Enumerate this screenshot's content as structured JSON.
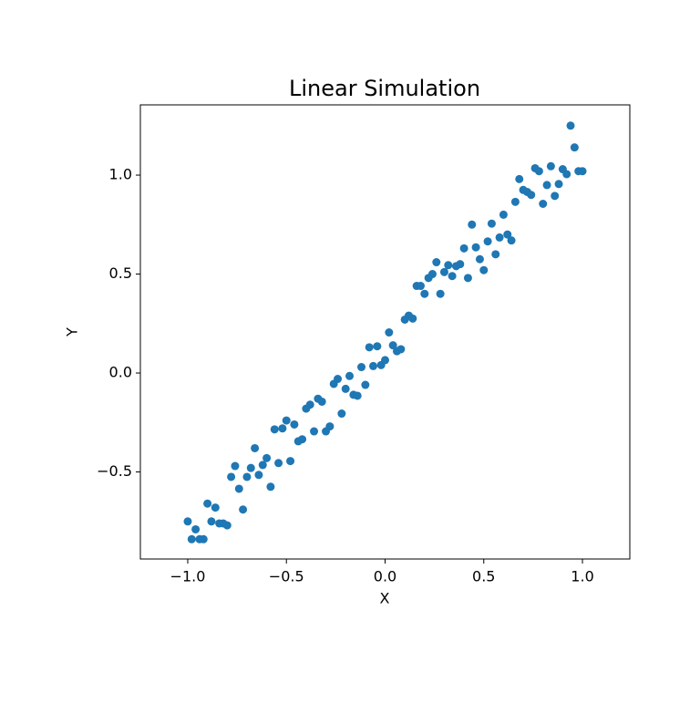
{
  "chart_data": {
    "type": "scatter",
    "title": "Linear Simulation",
    "x_label": "X",
    "y_label": "Y",
    "color": "#1f77b4",
    "x": [
      -1.0,
      -0.98,
      -0.96,
      -0.94,
      -0.92,
      -0.9,
      -0.88,
      -0.86,
      -0.84,
      -0.82,
      -0.8,
      -0.78,
      -0.76,
      -0.74,
      -0.72,
      -0.7,
      -0.68,
      -0.66,
      -0.64,
      -0.62,
      -0.6,
      -0.58,
      -0.56,
      -0.54,
      -0.52,
      -0.5,
      -0.48,
      -0.46,
      -0.44,
      -0.42,
      -0.4,
      -0.38,
      -0.36,
      -0.34,
      -0.32,
      -0.3,
      -0.28,
      -0.26,
      -0.24,
      -0.22,
      -0.2,
      -0.18,
      -0.16,
      -0.14,
      -0.12,
      -0.1,
      -0.08,
      -0.06,
      -0.04,
      -0.02,
      0,
      0.02,
      0.04,
      0.06,
      0.08,
      0.1,
      0.12,
      0.14,
      0.16,
      0.18,
      0.2,
      0.22,
      0.24,
      0.26,
      0.28,
      0.3,
      0.32,
      0.34,
      0.36,
      0.38,
      0.4,
      0.42,
      0.44,
      0.46,
      0.48,
      0.5,
      0.52,
      0.54,
      0.56,
      0.58,
      0.6,
      0.62,
      0.64,
      0.66,
      0.68,
      0.7,
      0.72,
      0.74,
      0.76,
      0.78,
      0.8,
      0.82,
      0.84,
      0.86,
      0.88,
      0.9,
      0.92,
      0.94,
      0.96,
      0.98,
      1.0
    ],
    "values": [
      -0.75,
      -0.84,
      -0.79,
      -0.84,
      -0.84,
      -0.66,
      -0.75,
      -0.68,
      -0.76,
      -0.76,
      -0.77,
      -0.525,
      -0.47,
      -0.585,
      -0.69,
      -0.525,
      -0.48,
      -0.38,
      -0.515,
      -0.465,
      -0.43,
      -0.575,
      -0.285,
      -0.455,
      -0.28,
      -0.24,
      -0.445,
      -0.26,
      -0.345,
      -0.335,
      -0.18,
      -0.16,
      -0.295,
      -0.13,
      -0.145,
      -0.295,
      -0.27,
      -0.055,
      -0.03,
      -0.205,
      -0.08,
      -0.015,
      -0.11,
      -0.115,
      0.03,
      -0.06,
      0.13,
      0.035,
      0.135,
      0.04,
      0.065,
      0.205,
      0.14,
      0.11,
      0.12,
      0.27,
      0.29,
      0.275,
      0.44,
      0.44,
      0.4,
      0.48,
      0.5,
      0.56,
      0.4,
      0.51,
      0.545,
      0.49,
      0.54,
      0.55,
      0.63,
      0.48,
      0.75,
      0.635,
      0.575,
      0.52,
      0.665,
      0.755,
      0.6,
      0.685,
      0.8,
      0.7,
      0.67,
      0.865,
      0.98,
      0.925,
      0.915,
      0.9,
      1.035,
      1.02,
      0.855,
      0.95,
      1.045,
      0.895,
      0.955,
      1.03,
      1.005,
      1.25,
      1.14,
      1.02,
      1.02
    ],
    "xlim": [
      -1.24,
      1.24
    ],
    "ylim": [
      -0.94,
      1.355
    ],
    "xticks": [
      {
        "value": -1.0,
        "label": "−1.0"
      },
      {
        "value": -0.5,
        "label": "−0.5"
      },
      {
        "value": 0,
        "label": "0.0"
      },
      {
        "value": 0.5,
        "label": "0.5"
      },
      {
        "value": 1,
        "label": "1.0"
      }
    ],
    "yticks": [
      {
        "value": -0.5,
        "label": "−0.5"
      },
      {
        "value": 0,
        "label": "0.0"
      },
      {
        "value": 0.5,
        "label": "0.5"
      },
      {
        "value": 1,
        "label": "1.0"
      }
    ]
  }
}
